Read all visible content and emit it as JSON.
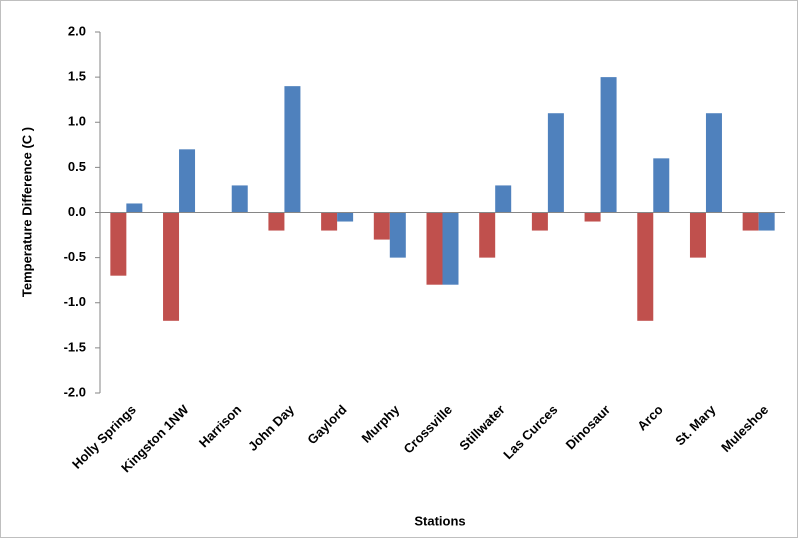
{
  "chart_data": {
    "type": "bar",
    "x_label": "Stations",
    "y_label": "Temperature Difference (C )",
    "categories": [
      "Holly Springs",
      "Kingston 1NW",
      "Harrison",
      "John Day",
      "Gaylord",
      "Murphy",
      "Crossville",
      "Stillwater",
      "Las Curces",
      "Dinosaur",
      "Arco",
      "St. Mary",
      "Muleshoe"
    ],
    "series": [
      {
        "color": "#c0504d",
        "values": [
          -0.7,
          -1.2,
          0,
          -0.2,
          -0.2,
          -0.3,
          -0.8,
          -0.5,
          -0.2,
          -0.1,
          -1.2,
          -0.5,
          -0.2
        ]
      },
      {
        "color": "#4f81bd",
        "values": [
          0.1,
          0.7,
          0.3,
          1.4,
          -0.1,
          -0.5,
          -0.8,
          0.3,
          1.1,
          1.5,
          0.6,
          1.1,
          -0.2
        ]
      }
    ],
    "ylim": [
      -2,
      2
    ],
    "yticks": [
      {
        "value": 2,
        "label": "2.0"
      },
      1.5,
      {
        "value": 1,
        "label": "1.0"
      },
      0.5,
      {
        "value": 0,
        "label": "0.0"
      },
      -0.5,
      {
        "value": -1,
        "label": "-1.0"
      },
      -1.5,
      {
        "value": -2,
        "label": "-2.0"
      }
    ],
    "grid": false
  }
}
